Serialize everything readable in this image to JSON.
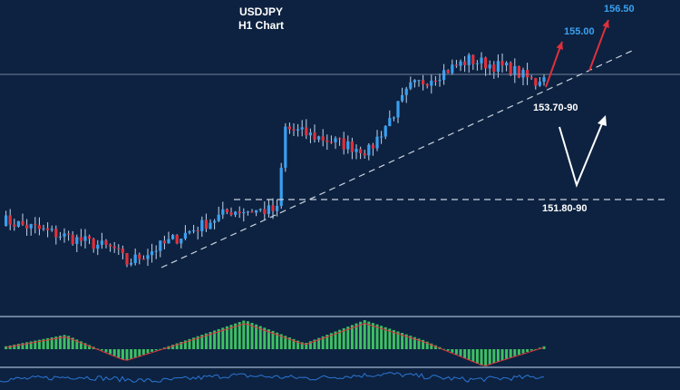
{
  "title": "USDJPY",
  "subtitle": "H1 Chart",
  "colors": {
    "background": "#0d2240",
    "bull": "#3aa0f0",
    "bear": "#e0303a",
    "wick": "#c0d4ec",
    "trend_line": "#c9d3df",
    "target_arrow": "#e0303a",
    "scenario_arrow": "#ffffff",
    "target_text": "#3aa0f0",
    "level_text": "#ffffff",
    "hist": "#3fbf64",
    "signal": "#e0303a",
    "osc": "#2a76d6"
  },
  "chart_data": {
    "type": "candlestick",
    "title": "USDJPY",
    "subtitle": "H1 Chart",
    "ylim": [
      150.0,
      157.0
    ],
    "current_price": 154.75,
    "grid": false,
    "levels": [
      {
        "label": "153.70-90",
        "value": 153.8
      },
      {
        "label": "151.80-90",
        "value": 151.85
      }
    ],
    "targets": [
      {
        "label": "155.00",
        "value": 155.0
      },
      {
        "label": "156.50",
        "value": 156.5
      }
    ],
    "trendline": {
      "from": [
        20,
        150.25
      ],
      "to": [
        108,
        154.95
      ]
    },
    "candles_count": 130,
    "key_prices": [
      {
        "bar": 0,
        "close": 151.55
      },
      {
        "bar": 27,
        "close": 150.9
      },
      {
        "bar": 30,
        "close": 150.6
      },
      {
        "bar": 55,
        "close": 151.75
      },
      {
        "bar": 66,
        "close": 151.75
      },
      {
        "bar": 68,
        "close": 153.55
      },
      {
        "bar": 88,
        "close": 153.05
      },
      {
        "bar": 98,
        "close": 154.45
      },
      {
        "bar": 112,
        "close": 155.05
      },
      {
        "bar": 122,
        "close": 154.85
      },
      {
        "bar": 128,
        "close": 154.55
      },
      {
        "bar": 130,
        "close": 154.75
      }
    ],
    "macd_hist_profile": [
      0.1,
      0.5,
      -0.4,
      0.3,
      1.0,
      0.2,
      1.0,
      0.3,
      -0.6,
      0.1
    ],
    "osc_profile": [
      0.4,
      0.6,
      0.3,
      0.7,
      0.5,
      0.8,
      0.4,
      0.6
    ]
  }
}
